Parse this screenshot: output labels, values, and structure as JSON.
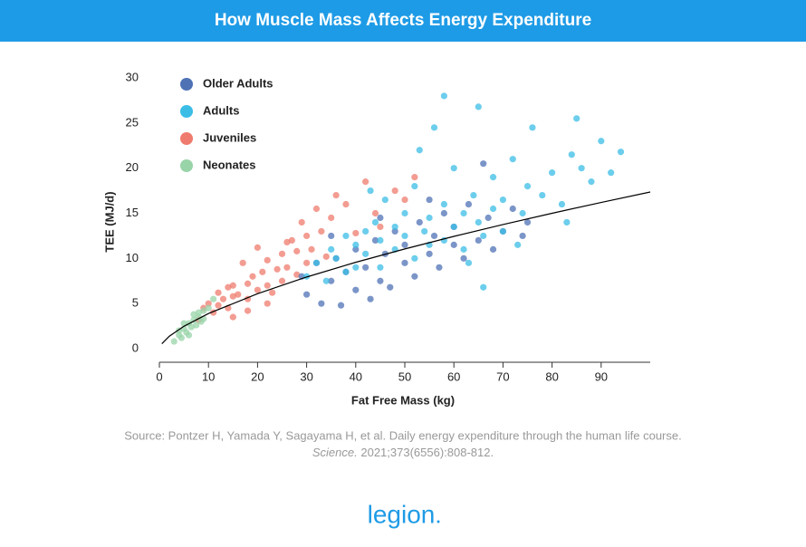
{
  "chart_data": {
    "type": "scatter",
    "title": "How Muscle Mass Affects Energy Expenditure",
    "x_label": "Fat Free Mass (kg)",
    "y_label": "TEE (MJ/d)",
    "xlim": [
      0,
      100
    ],
    "xticks": [
      0,
      10,
      20,
      30,
      40,
      50,
      60,
      70,
      80,
      90
    ],
    "ylim": [
      0,
      30
    ],
    "yticks": [
      0,
      5,
      10,
      15,
      20,
      25,
      30
    ],
    "legend_position": "upper left",
    "series": [
      {
        "name": "Older Adults",
        "color": "#4f72b5",
        "x": [
          29,
          30,
          32,
          33,
          35,
          36,
          37,
          38,
          40,
          40,
          42,
          43,
          44,
          45,
          46,
          47,
          48,
          50,
          50,
          52,
          53,
          55,
          56,
          57,
          58,
          60,
          60,
          62,
          63,
          65,
          66,
          67,
          68,
          70,
          72,
          74,
          75,
          35,
          45,
          55
        ],
        "values": [
          8.0,
          6.0,
          9.5,
          5.0,
          7.5,
          10.0,
          4.8,
          8.5,
          6.5,
          11.0,
          9.0,
          5.5,
          12.0,
          7.5,
          10.5,
          6.8,
          13.0,
          9.5,
          11.5,
          8.0,
          14.0,
          10.5,
          12.5,
          9.0,
          15.0,
          11.5,
          13.5,
          10.0,
          16.0,
          12.0,
          20.5,
          14.5,
          11.0,
          13.0,
          15.5,
          12.5,
          14.0,
          12.5,
          14.5,
          16.5
        ]
      },
      {
        "name": "Adults",
        "color": "#3bbde6",
        "x": [
          30,
          32,
          34,
          35,
          36,
          38,
          38,
          40,
          40,
          42,
          42,
          44,
          45,
          45,
          46,
          48,
          48,
          50,
          50,
          52,
          52,
          54,
          55,
          55,
          56,
          58,
          58,
          60,
          60,
          62,
          62,
          64,
          65,
          65,
          66,
          68,
          68,
          70,
          70,
          72,
          74,
          75,
          76,
          78,
          80,
          82,
          84,
          85,
          86,
          88,
          90,
          92,
          94,
          58,
          66,
          43,
          53,
          63,
          73,
          83
        ],
        "values": [
          8.0,
          9.5,
          7.5,
          11.0,
          10.0,
          12.5,
          8.5,
          11.5,
          9.0,
          13.0,
          10.5,
          14.0,
          12.0,
          9.0,
          16.5,
          11.0,
          13.5,
          12.5,
          15.0,
          10.0,
          18.0,
          13.0,
          14.5,
          11.5,
          24.5,
          16.0,
          12.0,
          13.5,
          20.0,
          15.0,
          11.0,
          17.0,
          14.0,
          26.8,
          12.5,
          19.0,
          15.5,
          16.5,
          13.0,
          21.0,
          15.0,
          18.0,
          24.5,
          17.0,
          19.5,
          16.0,
          21.5,
          25.5,
          20.0,
          18.5,
          23.0,
          19.5,
          21.8,
          28.0,
          6.8,
          17.5,
          22.0,
          9.5,
          11.5,
          14.0
        ]
      },
      {
        "name": "Juveniles",
        "color": "#ef7b6e",
        "x": [
          8,
          9,
          10,
          11,
          12,
          12,
          13,
          14,
          14,
          15,
          15,
          16,
          17,
          18,
          18,
          19,
          20,
          20,
          21,
          22,
          22,
          23,
          24,
          25,
          25,
          26,
          27,
          28,
          28,
          29,
          30,
          30,
          31,
          32,
          33,
          34,
          35,
          36,
          38,
          40,
          42,
          44,
          45,
          48,
          50,
          52,
          15,
          18,
          22,
          26
        ],
        "values": [
          3.2,
          4.5,
          5.0,
          4.0,
          6.2,
          4.8,
          5.5,
          6.8,
          4.5,
          7.0,
          5.8,
          6.0,
          9.5,
          7.2,
          5.5,
          8.0,
          6.5,
          11.2,
          8.5,
          7.0,
          9.8,
          6.2,
          8.8,
          10.5,
          7.5,
          9.0,
          12.0,
          8.2,
          10.8,
          14.0,
          9.5,
          12.5,
          11.0,
          15.5,
          13.0,
          10.2,
          14.5,
          17.0,
          16.0,
          12.8,
          18.5,
          15.0,
          13.5,
          17.5,
          16.5,
          19.0,
          3.5,
          4.2,
          5.0,
          11.8
        ]
      },
      {
        "name": "Neonates",
        "color": "#98d4a8",
        "x": [
          3,
          4,
          4.5,
          5,
          5.5,
          6,
          6.5,
          7,
          7.5,
          8,
          8.5,
          9,
          10,
          11,
          4,
          5,
          6,
          7,
          8,
          9
        ],
        "values": [
          0.8,
          1.5,
          1.2,
          2.2,
          1.8,
          2.8,
          2.4,
          3.2,
          2.6,
          3.5,
          3.0,
          4.2,
          4.5,
          5.5,
          2.0,
          2.8,
          1.5,
          3.8,
          4.0,
          3.3
        ]
      }
    ],
    "trendline": {
      "color": "#000000",
      "x": [
        0.5,
        2,
        5,
        10,
        20,
        30,
        40,
        50,
        60,
        70,
        80,
        90,
        100
      ],
      "values": [
        0.55,
        1.37,
        2.48,
        3.89,
        6.09,
        7.94,
        9.57,
        11.05,
        12.44,
        13.75,
        15.0,
        16.2,
        17.36
      ]
    },
    "source": "Source: Pontzer H, Yamada Y, Sagayama H, et al. Daily energy expenditure through the human life course.",
    "source_journal": "Science.",
    "source_citation": " 2021;373(6556):808-812.",
    "logo": "legion"
  }
}
